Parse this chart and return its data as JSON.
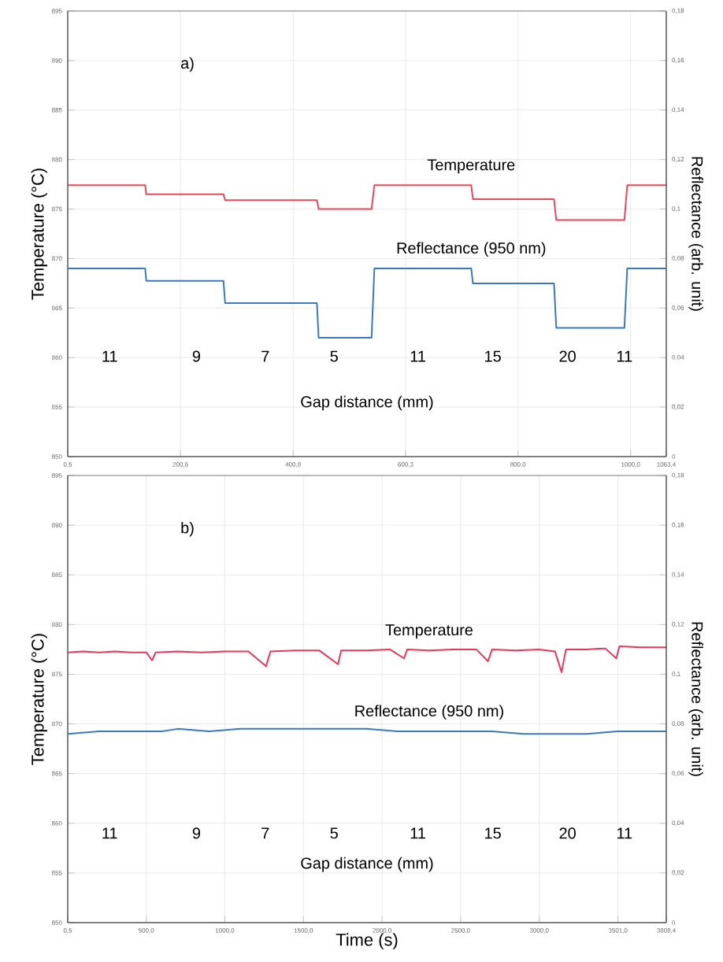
{
  "chart_data": [
    {
      "type": "line",
      "ylabel": "Temperature (°C)",
      "y2label": "Reflectance (arb. unit)",
      "grid": true,
      "xlim": [
        0.5,
        1063.4
      ],
      "xticks": [
        {
          "value": 0.5,
          "label": "0,5"
        },
        {
          "value": 200.6,
          "label": "200,6"
        },
        {
          "value": 400.8,
          "label": "400,8"
        },
        {
          "value": 600.3,
          "label": "600,3"
        },
        {
          "value": 800.0,
          "label": "800,0"
        },
        {
          "value": 1000.0,
          "label": "1000,0"
        },
        {
          "value": 1063.4,
          "label": "1063,4"
        }
      ],
      "ylim": [
        850,
        895
      ],
      "yticks": [
        850,
        855,
        860,
        865,
        870,
        875,
        880,
        885,
        890,
        895
      ],
      "y2lim": [
        0,
        0.18
      ],
      "y2ticks": [
        {
          "value": 0,
          "label": "0"
        },
        {
          "value": 0.02,
          "label": "0,02"
        },
        {
          "value": 0.04,
          "label": "0,04"
        },
        {
          "value": 0.06,
          "label": "0,06"
        },
        {
          "value": 0.08,
          "label": "0,08"
        },
        {
          "value": 0.1,
          "label": "0,1"
        },
        {
          "value": 0.12,
          "label": "0,12"
        },
        {
          "value": 0.14,
          "label": "0,14"
        },
        {
          "value": 0.16,
          "label": "0,16"
        },
        {
          "value": 0.18,
          "label": "0,18"
        }
      ],
      "series": [
        {
          "name": "Temperature",
          "color": "#e8485a",
          "x": [
            0.5,
            138,
            140,
            277,
            280,
            443,
            446,
            540,
            545,
            717,
            720,
            864,
            868,
            989,
            994,
            1063.4
          ],
          "values": [
            877.4,
            877.4,
            876.5,
            876.5,
            875.9,
            875.9,
            875.0,
            875.0,
            877.4,
            877.4,
            876.0,
            876.0,
            873.9,
            873.9,
            877.4,
            877.4
          ]
        },
        {
          "name": "Reflectance (950 nm)",
          "color": "#3a78c0",
          "axis": "y2",
          "x": [
            0.5,
            138,
            140,
            277,
            280,
            443,
            446,
            540,
            545,
            717,
            720,
            864,
            868,
            989,
            994,
            1063.4
          ],
          "values": [
            0.076,
            0.076,
            0.071,
            0.071,
            0.062,
            0.062,
            0.048,
            0.048,
            0.076,
            0.076,
            0.07,
            0.07,
            0.052,
            0.052,
            0.076,
            0.076
          ]
        }
      ],
      "annotations": [
        "a)",
        "Gap distance (mm)",
        "11",
        "9",
        "7",
        "5",
        "11",
        "15",
        "20",
        "11"
      ]
    },
    {
      "type": "line",
      "xlabel": "Time (s)",
      "ylabel": "Temperature (°C)",
      "y2label": "Reflectance (arb. unit)",
      "grid": true,
      "xlim": [
        0.5,
        3808.4
      ],
      "xticks": [
        {
          "value": 0.5,
          "label": "0,5"
        },
        {
          "value": 500.0,
          "label": "500,0"
        },
        {
          "value": 1000.0,
          "label": "1000,0"
        },
        {
          "value": 1500.0,
          "label": "1500,0"
        },
        {
          "value": 2000.0,
          "label": "2000,0"
        },
        {
          "value": 2500.0,
          "label": "2500,0"
        },
        {
          "value": 3000.0,
          "label": "3000,0"
        },
        {
          "value": 3501.0,
          "label": "3501,0"
        },
        {
          "value": 3808.4,
          "label": "3808,4"
        }
      ],
      "ylim": [
        850,
        895
      ],
      "yticks": [
        850,
        855,
        860,
        865,
        870,
        875,
        880,
        885,
        890,
        895
      ],
      "y2lim": [
        0,
        0.18
      ],
      "y2ticks": [
        {
          "value": 0,
          "label": "0"
        },
        {
          "value": 0.02,
          "label": "0,02"
        },
        {
          "value": 0.04,
          "label": "0,04"
        },
        {
          "value": 0.06,
          "label": "0,06"
        },
        {
          "value": 0.08,
          "label": "0,08"
        },
        {
          "value": 0.1,
          "label": "0,1"
        },
        {
          "value": 0.12,
          "label": "0,12"
        },
        {
          "value": 0.14,
          "label": "0,14"
        },
        {
          "value": 0.16,
          "label": "0,16"
        },
        {
          "value": 0.18,
          "label": "0,18"
        }
      ],
      "series": [
        {
          "name": "Temperature",
          "color": "#e8385a",
          "x": [
            0.5,
            100,
            200,
            300,
            400,
            500,
            537,
            560,
            700,
            850,
            1000,
            1150,
            1262,
            1290,
            1450,
            1600,
            1720,
            1740,
            1900,
            2050,
            2140,
            2160,
            2300,
            2450,
            2600,
            2674,
            2700,
            2850,
            3000,
            3100,
            3142,
            3170,
            3300,
            3420,
            3490,
            3510,
            3650,
            3808.4
          ],
          "values": [
            877.2,
            877.3,
            877.2,
            877.3,
            877.2,
            877.2,
            876.4,
            877.2,
            877.3,
            877.2,
            877.3,
            877.3,
            875.8,
            877.3,
            877.4,
            877.4,
            876.0,
            877.4,
            877.4,
            877.5,
            876.6,
            877.5,
            877.4,
            877.5,
            877.5,
            876.3,
            877.5,
            877.4,
            877.5,
            877.3,
            875.2,
            877.5,
            877.5,
            877.6,
            876.6,
            877.8,
            877.7,
            877.7
          ]
        },
        {
          "name": "Reflectance (950 nm)",
          "color": "#3a78c0",
          "axis": "y2",
          "x": [
            0.5,
            200,
            400,
            600,
            700,
            900,
            1100,
            1300,
            1500,
            1700,
            1900,
            2100,
            2300,
            2500,
            2700,
            2900,
            3100,
            3300,
            3500,
            3700,
            3808.4
          ],
          "values": [
            0.076,
            0.077,
            0.077,
            0.077,
            0.078,
            0.077,
            0.078,
            0.078,
            0.078,
            0.078,
            0.078,
            0.077,
            0.077,
            0.077,
            0.077,
            0.076,
            0.076,
            0.076,
            0.077,
            0.077,
            0.077
          ]
        }
      ],
      "annotations": [
        "b)",
        "Gap distance (mm)",
        "11",
        "9",
        "7",
        "5",
        "11",
        "15",
        "20",
        "11"
      ]
    }
  ]
}
